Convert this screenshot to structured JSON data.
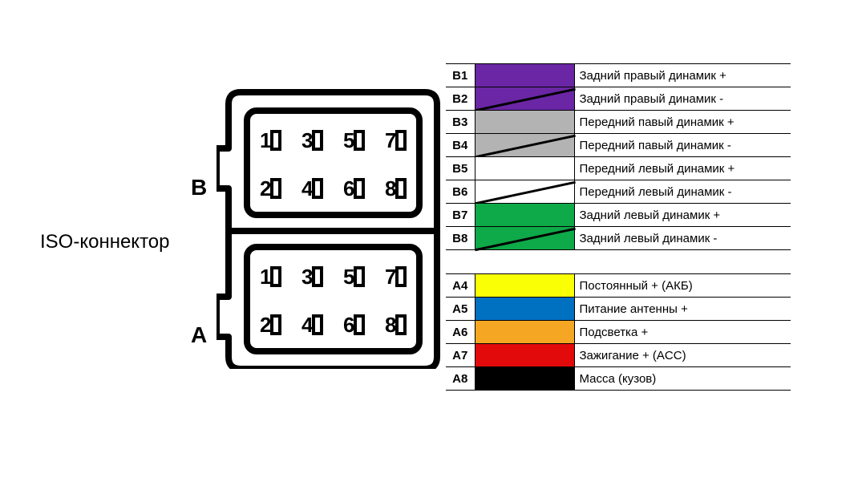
{
  "labels": {
    "iso": "ISO-коннектор",
    "connectorB": "B",
    "connectorA": "A"
  },
  "connector": {
    "stroke": "#000000",
    "stroke_width": 8,
    "pins": [
      "1",
      "2",
      "3",
      "4",
      "5",
      "6",
      "7",
      "8"
    ]
  },
  "legend": {
    "groupB": [
      {
        "pin": "B1",
        "color": "#6a26a4",
        "stripe": false,
        "desc": "Задний правый динамик +"
      },
      {
        "pin": "B2",
        "color": "#6a26a4",
        "stripe": true,
        "desc": "Задний правый динамик -"
      },
      {
        "pin": "B3",
        "color": "#b3b3b3",
        "stripe": false,
        "desc": "Передний павый динамик +"
      },
      {
        "pin": "B4",
        "color": "#b3b3b3",
        "stripe": true,
        "desc": "Передний павый динамик -"
      },
      {
        "pin": "B5",
        "color": "#ffffff",
        "stripe": false,
        "desc": "Передний левый динамик +"
      },
      {
        "pin": "B6",
        "color": "#ffffff",
        "stripe": true,
        "desc": "Передний левый динамик -"
      },
      {
        "pin": "B7",
        "color": "#0ea948",
        "stripe": false,
        "desc": "Задний левый динамик +"
      },
      {
        "pin": "B8",
        "color": "#0ea948",
        "stripe": true,
        "desc": "Задний левый динамик -"
      }
    ],
    "groupA": [
      {
        "pin": "A4",
        "color": "#faff05",
        "stripe": false,
        "desc": "Постоянный + (АКБ)"
      },
      {
        "pin": "A5",
        "color": "#0070c0",
        "stripe": false,
        "desc": "Питание антенны +"
      },
      {
        "pin": "A6",
        "color": "#f5a623",
        "stripe": false,
        "desc": "Подсветка +"
      },
      {
        "pin": "A7",
        "color": "#e20a0a",
        "stripe": false,
        "desc": "Зажигание + (ACC)"
      },
      {
        "pin": "A8",
        "color": "#000000",
        "stripe": false,
        "desc": "Масса (кузов)"
      }
    ]
  },
  "style": {
    "font_family": "Arial",
    "pin_fontsize": 26,
    "label_fontsize": 24,
    "legend_fontsize": 15,
    "background": "#ffffff",
    "border_color": "#000000"
  }
}
